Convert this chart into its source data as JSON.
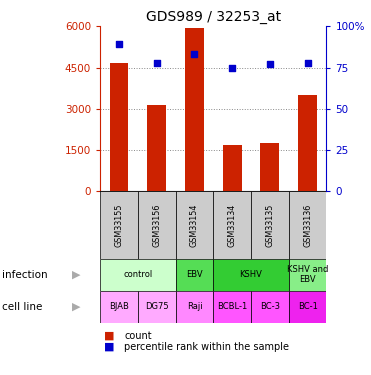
{
  "title": "GDS989 / 32253_at",
  "samples": [
    "GSM33155",
    "GSM33156",
    "GSM33154",
    "GSM33134",
    "GSM33135",
    "GSM33136"
  ],
  "counts": [
    4650,
    3150,
    5950,
    1700,
    1750,
    3500
  ],
  "percentile_ranks": [
    89,
    78,
    83,
    75,
    77,
    78
  ],
  "ylim_left": [
    0,
    6000
  ],
  "ylim_right": [
    0,
    100
  ],
  "yticks_left": [
    0,
    1500,
    3000,
    4500,
    6000
  ],
  "ytick_labels_left": [
    "0",
    "1500",
    "3000",
    "4500",
    "6000"
  ],
  "yticks_right": [
    0,
    25,
    50,
    75,
    100
  ],
  "ytick_labels_right": [
    "0",
    "25",
    "50",
    "75",
    "100%"
  ],
  "bar_color": "#cc2200",
  "dot_color": "#0000cc",
  "infection_items": [
    {
      "start": 0,
      "end": 2,
      "label": "control",
      "color": "#ccffcc"
    },
    {
      "start": 2,
      "end": 3,
      "label": "EBV",
      "color": "#55dd55"
    },
    {
      "start": 3,
      "end": 5,
      "label": "KSHV",
      "color": "#33cc33"
    },
    {
      "start": 5,
      "end": 6,
      "label": "KSHV and\nEBV",
      "color": "#88ee88"
    }
  ],
  "cell_line_items": [
    {
      "label": "BJAB",
      "color": "#ffaaff"
    },
    {
      "label": "DG75",
      "color": "#ffaaff"
    },
    {
      "label": "Raji",
      "color": "#ff88ff"
    },
    {
      "label": "BCBL-1",
      "color": "#ff55ff"
    },
    {
      "label": "BC-3",
      "color": "#ff55ff"
    },
    {
      "label": "BC-1",
      "color": "#ee22ee"
    }
  ],
  "grid_color": "#888888",
  "left_axis_color": "#cc2200",
  "right_axis_color": "#0000cc",
  "sample_box_color": "#cccccc",
  "bar_width": 0.5
}
